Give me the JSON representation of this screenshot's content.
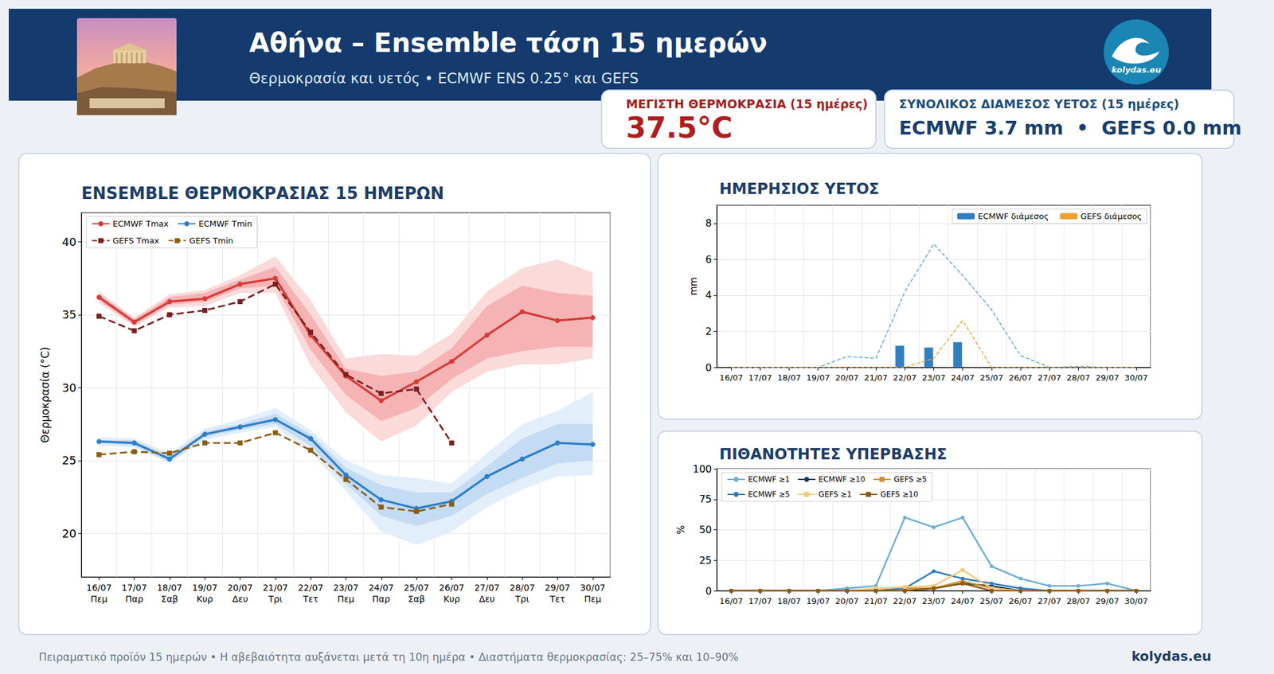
{
  "header": {
    "title": "Αθήνα – Ensemble τάση 15 ημερών",
    "subtitle": "Θερμοκρασία και υετός • ECMWF ENS 0.25° και GEFS",
    "logo_text": "kolydas.eu"
  },
  "cards": [
    {
      "label": "ΜΕΓΙΣΤΗ ΘΕΡΜΟΚΡΑΣΙΑ (15 ημέρες)",
      "value": "37.5°C"
    },
    {
      "label": "ΣΥΝΟΛΙΚΟΣ ΔΙΑΜΕΣΟΣ ΥΕΤΟΣ (15 ημέρες)",
      "value": "ECMWF 3.7 mm  •  GEFS 0.0 mm"
    }
  ],
  "footer": {
    "note": "Πειραματικό προϊόν 15 ημερών • Η αβεβαιότητα αυξάνεται μετά τη 10η ημέρα • Διαστήματα θερμοκρασίας: 25–75% και 10–90%",
    "brand": "kolydas.eu"
  },
  "chart_data": [
    {
      "type": "line",
      "title": "ENSEMBLE ΘΕΡΜΟΚΡΑΣΙΑΣ 15 ΗΜΕΡΩΝ",
      "y_label": "Θερμοκρασία (°C)",
      "categories": [
        "16/07",
        "17/07",
        "18/07",
        "19/07",
        "20/07",
        "21/07",
        "22/07",
        "23/07",
        "24/07",
        "25/07",
        "26/07",
        "27/07",
        "28/07",
        "29/07",
        "30/07"
      ],
      "category_sublabels": [
        "Πεμ",
        "Παρ",
        "Σαβ",
        "Κυρ",
        "Δευ",
        "Τρι",
        "Τετ",
        "Πεμ",
        "Παρ",
        "Σαβ",
        "Κυρ",
        "Δευ",
        "Τρι",
        "Τετ",
        "Πεμ"
      ],
      "ylim": [
        17,
        42
      ],
      "yticks": [
        20,
        25,
        30,
        35,
        40
      ],
      "grid": true,
      "legend": "upper left",
      "series": [
        {
          "type": "band",
          "color": "#fbdada",
          "lower": [
            35.8,
            34.2,
            35.5,
            35.6,
            36.5,
            36.5,
            31.5,
            28.3,
            26.3,
            27.4,
            29.7,
            31.1,
            31.6,
            31.6,
            32.0
          ],
          "upper": [
            36.6,
            34.8,
            36.4,
            36.7,
            37.7,
            39.0,
            36.0,
            32.0,
            32.3,
            32.2,
            33.7,
            36.6,
            38.2,
            38.8,
            37.9
          ]
        },
        {
          "type": "band",
          "color": "#f6b3b3",
          "lower": [
            36.0,
            34.3,
            35.7,
            35.9,
            36.8,
            37.0,
            32.6,
            29.5,
            27.7,
            28.6,
            30.6,
            32.0,
            32.5,
            32.8,
            32.8
          ],
          "upper": [
            36.4,
            34.7,
            36.2,
            36.5,
            37.4,
            38.3,
            35.0,
            31.3,
            30.8,
            31.1,
            32.7,
            35.6,
            37.0,
            36.5,
            36.3
          ]
        },
        {
          "type": "band",
          "color": "#e3eefb",
          "lower": [
            26.0,
            25.9,
            24.8,
            26.4,
            26.9,
            27.3,
            25.6,
            22.9,
            20.1,
            19.2,
            20.1,
            21.8,
            23.0,
            23.9,
            24.0
          ],
          "upper": [
            26.6,
            26.5,
            25.5,
            27.2,
            27.8,
            28.6,
            27.1,
            25.0,
            24.0,
            23.8,
            23.4,
            25.5,
            27.5,
            28.4,
            29.7
          ]
        },
        {
          "type": "band",
          "color": "#c4dbf4",
          "lower": [
            26.2,
            26.0,
            24.9,
            26.6,
            27.1,
            27.5,
            26.0,
            23.4,
            21.2,
            20.5,
            21.2,
            22.7,
            23.8,
            24.8,
            25.0
          ],
          "upper": [
            26.4,
            26.4,
            25.3,
            27.0,
            27.5,
            28.2,
            26.8,
            24.5,
            23.3,
            22.8,
            22.8,
            24.6,
            26.5,
            27.5,
            27.5
          ]
        },
        {
          "name": "ECMWF Tmax",
          "color": "#d63b3b",
          "marker": "circle",
          "line_style": "solid",
          "values": [
            36.2,
            34.5,
            35.9,
            36.1,
            37.1,
            37.5,
            33.6,
            30.8,
            29.1,
            30.4,
            31.8,
            33.6,
            35.2,
            34.6,
            34.8
          ]
        },
        {
          "name": "ECMWF Tmin",
          "color": "#2f7fc8",
          "marker": "circle",
          "line_style": "solid",
          "values": [
            26.3,
            26.2,
            25.1,
            26.8,
            27.3,
            27.8,
            26.5,
            24.0,
            22.3,
            21.7,
            22.2,
            23.9,
            25.1,
            26.2,
            26.1
          ]
        },
        {
          "name": "GEFS Tmax",
          "color": "#7b1f1f",
          "marker": "square",
          "line_style": "dashed",
          "values": [
            34.9,
            33.9,
            35.0,
            35.3,
            35.9,
            37.1,
            33.8,
            30.9,
            29.6,
            29.9,
            26.2,
            null,
            null,
            null,
            null
          ]
        },
        {
          "name": "GEFS Tmin",
          "color": "#8b5e12",
          "marker": "square",
          "line_style": "dashed",
          "values": [
            25.4,
            25.6,
            25.5,
            26.2,
            26.2,
            26.9,
            25.7,
            23.7,
            21.8,
            21.5,
            22.0,
            null,
            null,
            null,
            null
          ]
        }
      ]
    },
    {
      "type": "bar",
      "title": "ΗΜΕΡΗΣΙΟΣ ΥΕΤΟΣ",
      "y_label": "mm",
      "categories": [
        "16/07",
        "17/07",
        "18/07",
        "19/07",
        "20/07",
        "21/07",
        "22/07",
        "23/07",
        "24/07",
        "25/07",
        "26/07",
        "27/07",
        "28/07",
        "29/07",
        "30/07"
      ],
      "ylim": [
        0,
        9
      ],
      "yticks": [
        0,
        2,
        4,
        6,
        8
      ],
      "grid": true,
      "legend": "upper right",
      "series": [
        {
          "name": "ECMWF διάμεσος",
          "type": "bar",
          "color": "#2f7fc1",
          "values": [
            0,
            0,
            0,
            0,
            0,
            0,
            1.2,
            1.1,
            1.4,
            0,
            0,
            0,
            0,
            0,
            0
          ]
        },
        {
          "name": "GEFS διάμεσος",
          "type": "bar",
          "color": "#f0a030",
          "values": [
            0,
            0,
            0,
            0,
            0,
            0,
            0,
            0,
            0,
            0,
            0,
            0,
            0,
            0,
            0
          ]
        },
        {
          "type": "line",
          "color": "#5fa3d8",
          "marker": "none",
          "line_style": "dashed",
          "values": [
            0,
            0,
            0,
            0,
            0.6,
            0.5,
            4.2,
            6.85,
            5.1,
            3.2,
            0.65,
            0,
            0.05,
            0,
            0
          ]
        },
        {
          "type": "line",
          "color": "#e8a838",
          "marker": "none",
          "line_style": "dashed",
          "values": [
            0,
            0,
            0,
            0,
            0,
            0,
            0,
            0.5,
            2.6,
            0,
            0,
            0,
            0,
            0,
            0
          ]
        }
      ]
    },
    {
      "type": "line",
      "title": "ΠΙΘΑΝΟΤΗΤΕΣ ΥΠΕΡΒΑΣΗΣ",
      "y_label": "%",
      "categories": [
        "16/07",
        "17/07",
        "18/07",
        "19/07",
        "20/07",
        "21/07",
        "22/07",
        "23/07",
        "24/07",
        "25/07",
        "26/07",
        "27/07",
        "28/07",
        "29/07",
        "30/07"
      ],
      "ylim": [
        0,
        100
      ],
      "yticks": [
        0,
        25,
        50,
        75,
        100
      ],
      "grid": true,
      "legend": "upper left",
      "series": [
        {
          "name": "ECMWF ≥1",
          "color": "#6baed6",
          "marker": "circle",
          "line_style": "solid",
          "values": [
            0,
            0,
            0,
            0,
            2,
            4,
            60,
            52,
            60,
            20,
            10,
            4,
            4,
            6,
            0
          ]
        },
        {
          "name": "ECMWF ≥10",
          "color": "#17375e",
          "marker": "circle",
          "line_style": "solid",
          "values": [
            0,
            0,
            0,
            0,
            0,
            0,
            0,
            2,
            6,
            4,
            0,
            0,
            0,
            0,
            0
          ]
        },
        {
          "name": "GEFS ≥5",
          "color": "#d4922e",
          "marker": "square",
          "line_style": "solid",
          "values": [
            0,
            0,
            0,
            0,
            0,
            0,
            2,
            2,
            8,
            2,
            0,
            0,
            0,
            0,
            0
          ]
        },
        {
          "name": "ECMWF ≥5",
          "color": "#2b7bba",
          "marker": "circle",
          "line_style": "solid",
          "values": [
            0,
            0,
            0,
            0,
            0,
            0,
            2,
            16,
            10,
            6,
            2,
            0,
            0,
            0,
            0
          ]
        },
        {
          "name": "GEFS ≥1",
          "color": "#f6c97a",
          "marker": "square",
          "line_style": "solid",
          "values": [
            0,
            0,
            0,
            0,
            0,
            2,
            3,
            4,
            17,
            2,
            0,
            0,
            0,
            0,
            0
          ]
        },
        {
          "name": "GEFS ≥10",
          "color": "#8a5a14",
          "marker": "square",
          "line_style": "solid",
          "values": [
            0,
            0,
            0,
            0,
            0,
            0,
            0,
            2,
            6,
            0,
            0,
            0,
            0,
            0,
            0
          ]
        }
      ]
    }
  ]
}
